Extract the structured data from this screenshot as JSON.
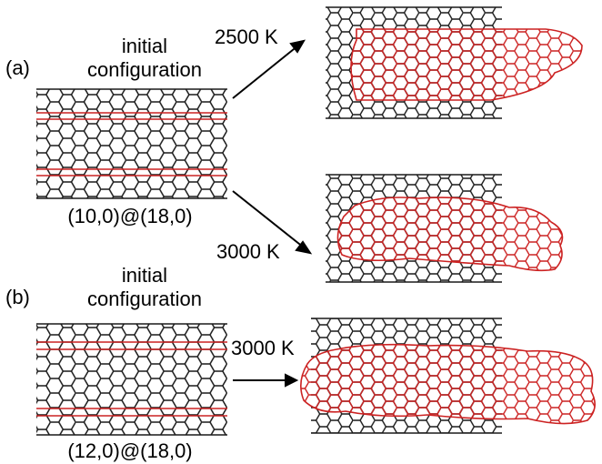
{
  "panels": [
    {
      "letter": "(a)",
      "initial_line1": "initial",
      "initial_line2": "configuration",
      "tube_label": "(10,0)@(18,0)",
      "results": [
        {
          "temperature": "2500 K"
        },
        {
          "temperature": "3000 K"
        }
      ]
    },
    {
      "letter": "(b)",
      "initial_line1": "initial",
      "initial_line2": "configuration",
      "tube_label": "(12,0)@(18,0)",
      "results": [
        {
          "temperature": "3000 K"
        }
      ]
    }
  ],
  "colors": {
    "outer_tube": "#1a1a1a",
    "inner_tube": "#cc2222"
  }
}
